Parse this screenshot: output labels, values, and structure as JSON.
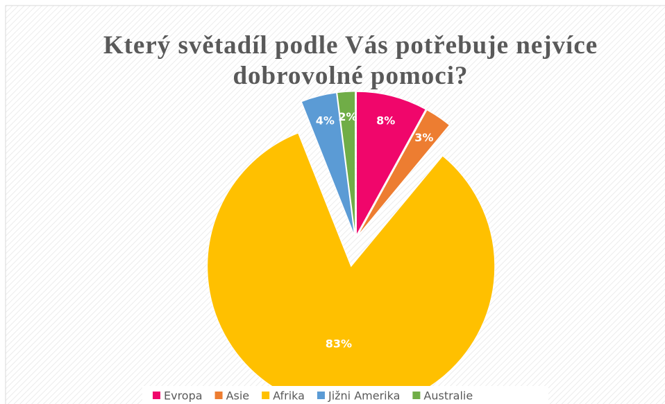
{
  "chart_data": {
    "type": "pie",
    "title": "Který světadíl podle Vás potřebuje nejvíce dobrovolné pomoci?",
    "categories": [
      "Evropa",
      "Asie",
      "Afrika",
      "Jižni Amerika",
      "Australie"
    ],
    "values": [
      8,
      3,
      83,
      4,
      2
    ],
    "value_labels": [
      "8%",
      "3%",
      "83%",
      "4%",
      "2%"
    ],
    "colors": [
      "#f0066b",
      "#ed7d31",
      "#ffc000",
      "#5b9bd5",
      "#70ad47"
    ],
    "legend": "bottom"
  }
}
